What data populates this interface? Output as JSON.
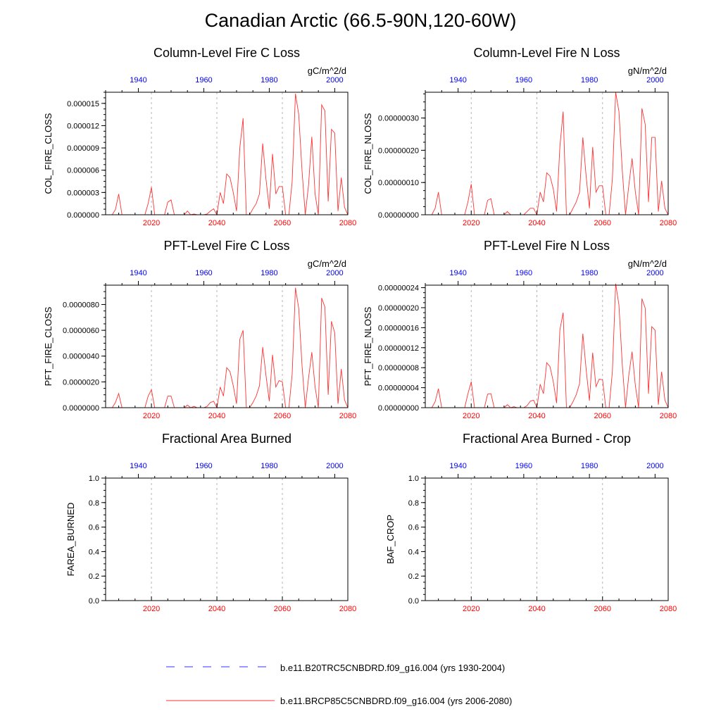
{
  "page": {
    "title": "Canadian Arctic (66.5-90N,120-60W)"
  },
  "legend": [
    {
      "label": "b.e11.B20TRC5CNBDRD.f09_g16.004 (yrs 1930-2004)",
      "color": "#3333ff",
      "dash": "dashed"
    },
    {
      "label": "b.e11.BRCP85C5CNBDRD.f09_g16.004 (yrs 2006-2080)",
      "color": "#ff3333",
      "dash": "solid"
    }
  ],
  "chart_data": [
    {
      "type": "line",
      "title": "Column-Level Fire C Loss",
      "units": "gC/m^2/d",
      "ylabel": "COL_FIRE_CLOSS",
      "x_bottom": {
        "range": [
          2006,
          2080
        ],
        "ticks": [
          "2020",
          "2040",
          "2060",
          "2080"
        ],
        "color": "#ff0000"
      },
      "x_top": {
        "range": [
          1930,
          2004
        ],
        "ticks": [
          "1940",
          "1960",
          "1980",
          "2000"
        ],
        "color": "#0000ff"
      },
      "ylim": [
        0,
        1.65e-05
      ],
      "yticks": [
        "0.000000",
        "0.000003",
        "0.000006",
        "0.000009",
        "0.000012",
        "0.000015"
      ],
      "ytick_values": [
        0,
        3e-06,
        6e-06,
        9e-06,
        1.2e-05,
        1.5e-05
      ],
      "series": [
        {
          "name": "b.e11.BRCP85C5CNBDRD.f09_g16.004",
          "x": [
            2006,
            2007,
            2008,
            2009,
            2010,
            2011,
            2012,
            2013,
            2014,
            2015,
            2016,
            2017,
            2018,
            2019,
            2020,
            2021,
            2022,
            2023,
            2024,
            2025,
            2026,
            2027,
            2028,
            2029,
            2030,
            2031,
            2032,
            2033,
            2034,
            2035,
            2036,
            2037,
            2038,
            2039,
            2040,
            2041,
            2042,
            2043,
            2044,
            2045,
            2046,
            2047,
            2048,
            2049,
            2050,
            2051,
            2052,
            2053,
            2054,
            2055,
            2056,
            2057,
            2058,
            2059,
            2060,
            2061,
            2062,
            2063,
            2064,
            2065,
            2066,
            2067,
            2068,
            2069,
            2070,
            2071,
            2072,
            2073,
            2074,
            2075,
            2076,
            2077,
            2078,
            2079,
            2080
          ],
          "values": [
            0,
            0,
            0,
            7e-07,
            2.8e-06,
            0,
            0,
            0,
            0,
            0,
            0,
            0,
            0,
            1.5e-06,
            3.7e-06,
            0,
            0,
            0,
            0,
            1.7e-06,
            2e-06,
            0,
            0,
            0,
            0,
            5e-07,
            0,
            1e-07,
            0,
            0,
            0,
            1e-07,
            5e-07,
            8e-07,
            0,
            3e-06,
            1.5e-06,
            5.5e-06,
            5e-06,
            3e-06,
            5e-07,
            9e-06,
            1.3e-05,
            0,
            0,
            8e-07,
            1.5e-06,
            2.8e-06,
            9.6e-06,
            4.8e-06,
            8e-07,
            8.2e-06,
            2.8e-06,
            3.8e-06,
            3.8e-06,
            0,
            0,
            4.5e-06,
            1.63e-05,
            1.35e-05,
            6e-06,
            0,
            4e-06,
            1.05e-05,
            2.8e-06,
            0,
            1.48e-05,
            1.4e-05,
            1.8e-06,
            1.15e-05,
            1.1e-05,
            5e-07,
            5e-06,
            1e-06,
            0
          ]
        }
      ]
    },
    {
      "type": "line",
      "title": "Column-Level Fire N Loss",
      "units": "gN/m^2/d",
      "ylabel": "COL_FIRE_NLOSS",
      "x_bottom": {
        "range": [
          2006,
          2080
        ],
        "ticks": [
          "2020",
          "2040",
          "2060",
          "2080"
        ],
        "color": "#ff0000"
      },
      "x_top": {
        "range": [
          1930,
          2004
        ],
        "ticks": [
          "1940",
          "1960",
          "1980",
          "2000"
        ],
        "color": "#0000ff"
      },
      "ylim": [
        0,
        3.8e-07
      ],
      "yticks": [
        "0.00000000",
        "0.00000010",
        "0.00000020",
        "0.00000030"
      ],
      "ytick_values": [
        0,
        1e-07,
        2e-07,
        3e-07
      ],
      "series": [
        {
          "name": "b.e11.BRCP85C5CNBDRD.f09_g16.004",
          "x": [
            2006,
            2007,
            2008,
            2009,
            2010,
            2011,
            2012,
            2013,
            2014,
            2015,
            2016,
            2017,
            2018,
            2019,
            2020,
            2021,
            2022,
            2023,
            2024,
            2025,
            2026,
            2027,
            2028,
            2029,
            2030,
            2031,
            2032,
            2033,
            2034,
            2035,
            2036,
            2037,
            2038,
            2039,
            2040,
            2041,
            2042,
            2043,
            2044,
            2045,
            2046,
            2047,
            2048,
            2049,
            2050,
            2051,
            2052,
            2053,
            2054,
            2055,
            2056,
            2057,
            2058,
            2059,
            2060,
            2061,
            2062,
            2063,
            2064,
            2065,
            2066,
            2067,
            2068,
            2069,
            2070,
            2071,
            2072,
            2073,
            2074,
            2075,
            2076,
            2077,
            2078,
            2079,
            2080
          ],
          "values": [
            0,
            0,
            0,
            2e-08,
            7e-08,
            0,
            0,
            0,
            0,
            0,
            0,
            0,
            0,
            4e-08,
            9.5e-08,
            0,
            0,
            0,
            0,
            4.5e-08,
            5e-08,
            0,
            0,
            0,
            0,
            1e-08,
            0,
            0,
            0,
            0,
            0,
            1e-08,
            2e-08,
            2e-08,
            0,
            7e-08,
            4e-08,
            1.3e-07,
            1.2e-07,
            8e-08,
            1e-08,
            2.1e-07,
            3.2e-07,
            0,
            0,
            2e-08,
            4e-08,
            7e-08,
            2.4e-07,
            1.2e-07,
            2e-08,
            2.1e-07,
            7e-08,
            9e-08,
            9e-08,
            0,
            0,
            1.1e-07,
            3.8e-07,
            3.2e-07,
            1.4e-07,
            0,
            9e-08,
            1.75e-07,
            7e-08,
            0,
            3.3e-07,
            2.8e-07,
            4e-08,
            2.4e-07,
            2.4e-07,
            1e-08,
            1.05e-07,
            2e-08,
            0
          ]
        }
      ]
    },
    {
      "type": "line",
      "title": "PFT-Level Fire C Loss",
      "units": "gC/m^2/d",
      "ylabel": "PFT_FIRE_CLOSS",
      "x_bottom": {
        "range": [
          2006,
          2080
        ],
        "ticks": [
          "2020",
          "2040",
          "2060",
          "2080"
        ],
        "color": "#ff0000"
      },
      "x_top": {
        "range": [
          1930,
          2004
        ],
        "ticks": [
          "1940",
          "1960",
          "1980",
          "2000"
        ],
        "color": "#0000ff"
      },
      "ylim": [
        0,
        9.5e-06
      ],
      "yticks": [
        "0.0000000",
        "0.0000020",
        "0.0000040",
        "0.0000060",
        "0.0000080"
      ],
      "ytick_values": [
        0,
        2e-06,
        4e-06,
        6e-06,
        8e-06
      ],
      "series": [
        {
          "name": "b.e11.BRCP85C5CNBDRD.f09_g16.004",
          "x": [
            2006,
            2007,
            2008,
            2009,
            2010,
            2011,
            2012,
            2013,
            2014,
            2015,
            2016,
            2017,
            2018,
            2019,
            2020,
            2021,
            2022,
            2023,
            2024,
            2025,
            2026,
            2027,
            2028,
            2029,
            2030,
            2031,
            2032,
            2033,
            2034,
            2035,
            2036,
            2037,
            2038,
            2039,
            2040,
            2041,
            2042,
            2043,
            2044,
            2045,
            2046,
            2047,
            2048,
            2049,
            2050,
            2051,
            2052,
            2053,
            2054,
            2055,
            2056,
            2057,
            2058,
            2059,
            2060,
            2061,
            2062,
            2063,
            2064,
            2065,
            2066,
            2067,
            2068,
            2069,
            2070,
            2071,
            2072,
            2073,
            2074,
            2075,
            2076,
            2077,
            2078,
            2079,
            2080
          ],
          "values": [
            0,
            0,
            0,
            4e-07,
            1.1e-06,
            0,
            0,
            0,
            0,
            0,
            0,
            0,
            0,
            9e-07,
            1.4e-06,
            0,
            0,
            0,
            0,
            9e-07,
            9e-07,
            0,
            0,
            0,
            0,
            2e-07,
            0,
            1e-07,
            0,
            0,
            0,
            1e-07,
            4e-07,
            5e-07,
            0,
            1.6e-06,
            9e-07,
            3.1e-06,
            2.8e-06,
            1.7e-06,
            3e-07,
            5.3e-06,
            6e-06,
            0,
            0,
            4e-07,
            9e-07,
            1.7e-06,
            4.7e-06,
            2.5e-06,
            5e-07,
            4.1e-06,
            1.6e-06,
            2.1e-06,
            2e-06,
            0,
            0,
            2.6e-06,
            9.3e-06,
            7.7e-06,
            3.3e-06,
            0,
            2.3e-06,
            4.3e-06,
            1.6e-06,
            0,
            8.5e-06,
            7.8e-06,
            1e-06,
            6.7e-06,
            5.8e-06,
            3e-07,
            3e-06,
            6e-07,
            0
          ]
        }
      ]
    },
    {
      "type": "line",
      "title": "PFT-Level Fire N Loss",
      "units": "gN/m^2/d",
      "ylabel": "PFT_FIRE_NLOSS",
      "x_bottom": {
        "range": [
          2006,
          2080
        ],
        "ticks": [
          "2020",
          "2040",
          "2060",
          "2080"
        ],
        "color": "#ff0000"
      },
      "x_top": {
        "range": [
          1930,
          2004
        ],
        "ticks": [
          "1940",
          "1960",
          "1980",
          "2000"
        ],
        "color": "#0000ff"
      },
      "ylim": [
        0,
        2.45e-07
      ],
      "yticks": [
        "0.00000000",
        "0.00000004",
        "0.00000008",
        "0.00000012",
        "0.00000016",
        "0.00000020",
        "0.00000024"
      ],
      "ytick_values": [
        0,
        4e-08,
        8e-08,
        1.2e-07,
        1.6e-07,
        2e-07,
        2.4e-07
      ],
      "series": [
        {
          "name": "b.e11.BRCP85C5CNBDRD.f09_g16.004",
          "x": [
            2006,
            2007,
            2008,
            2009,
            2010,
            2011,
            2012,
            2013,
            2014,
            2015,
            2016,
            2017,
            2018,
            2019,
            2020,
            2021,
            2022,
            2023,
            2024,
            2025,
            2026,
            2027,
            2028,
            2029,
            2030,
            2031,
            2032,
            2033,
            2034,
            2035,
            2036,
            2037,
            2038,
            2039,
            2040,
            2041,
            2042,
            2043,
            2044,
            2045,
            2046,
            2047,
            2048,
            2049,
            2050,
            2051,
            2052,
            2053,
            2054,
            2055,
            2056,
            2057,
            2058,
            2059,
            2060,
            2061,
            2062,
            2063,
            2064,
            2065,
            2066,
            2067,
            2068,
            2069,
            2070,
            2071,
            2072,
            2073,
            2074,
            2075,
            2076,
            2077,
            2078,
            2079,
            2080
          ],
          "values": [
            0,
            0,
            0,
            1.2e-08,
            3.8e-08,
            0,
            0,
            0,
            0,
            0,
            0,
            0,
            0,
            2.8e-08,
            5.2e-08,
            0,
            0,
            0,
            0,
            2.7e-08,
            2.8e-08,
            0,
            0,
            0,
            0,
            6e-09,
            0,
            2e-09,
            0,
            0,
            0,
            4e-09,
            1.3e-08,
            1.5e-08,
            0,
            4.7e-08,
            2.8e-08,
            9e-08,
            8.2e-08,
            5.2e-08,
            9e-09,
            1.55e-07,
            1.9e-07,
            0,
            0,
            1.2e-08,
            2.6e-08,
            4.8e-08,
            1.48e-07,
            7.7e-08,
            1.4e-08,
            1.1e-07,
            4.2e-08,
            5.7e-08,
            5.6e-08,
            0,
            0,
            7.2e-08,
            2.48e-07,
            2.05e-07,
            8.8e-08,
            0,
            6.5e-08,
            1.12e-07,
            4.4e-08,
            0,
            2.18e-07,
            1.99e-07,
            2.8e-08,
            1.62e-07,
            1.55e-07,
            6e-09,
            7.2e-08,
            1.5e-08,
            0
          ]
        }
      ]
    },
    {
      "type": "line",
      "title": "Fractional Area Burned",
      "units": "",
      "ylabel": "FAREA_BURNED",
      "x_bottom": {
        "range": [
          2006,
          2080
        ],
        "ticks": [
          "2020",
          "2040",
          "2060",
          "2080"
        ],
        "color": "#ff0000"
      },
      "x_top": {
        "range": [
          1930,
          2004
        ],
        "ticks": [
          "1940",
          "1960",
          "1980",
          "2000"
        ],
        "color": "#0000ff"
      },
      "ylim": [
        0,
        1
      ],
      "yticks": [
        "0.0",
        "0.2",
        "0.4",
        "0.6",
        "0.8",
        "1.0"
      ],
      "ytick_values": [
        0,
        0.2,
        0.4,
        0.6,
        0.8,
        1.0
      ],
      "series": []
    },
    {
      "type": "line",
      "title": "Fractional Area Burned - Crop",
      "units": "",
      "ylabel": "BAF_CROP",
      "x_bottom": {
        "range": [
          2006,
          2080
        ],
        "ticks": [
          "2020",
          "2040",
          "2060",
          "2080"
        ],
        "color": "#ff0000"
      },
      "x_top": {
        "range": [
          1930,
          2004
        ],
        "ticks": [
          "1940",
          "1960",
          "1980",
          "2000"
        ],
        "color": "#0000ff"
      },
      "ylim": [
        0,
        1
      ],
      "yticks": [
        "0.0",
        "0.2",
        "0.4",
        "0.6",
        "0.8",
        "1.0"
      ],
      "ytick_values": [
        0,
        0.2,
        0.4,
        0.6,
        0.8,
        1.0
      ],
      "series": []
    }
  ]
}
